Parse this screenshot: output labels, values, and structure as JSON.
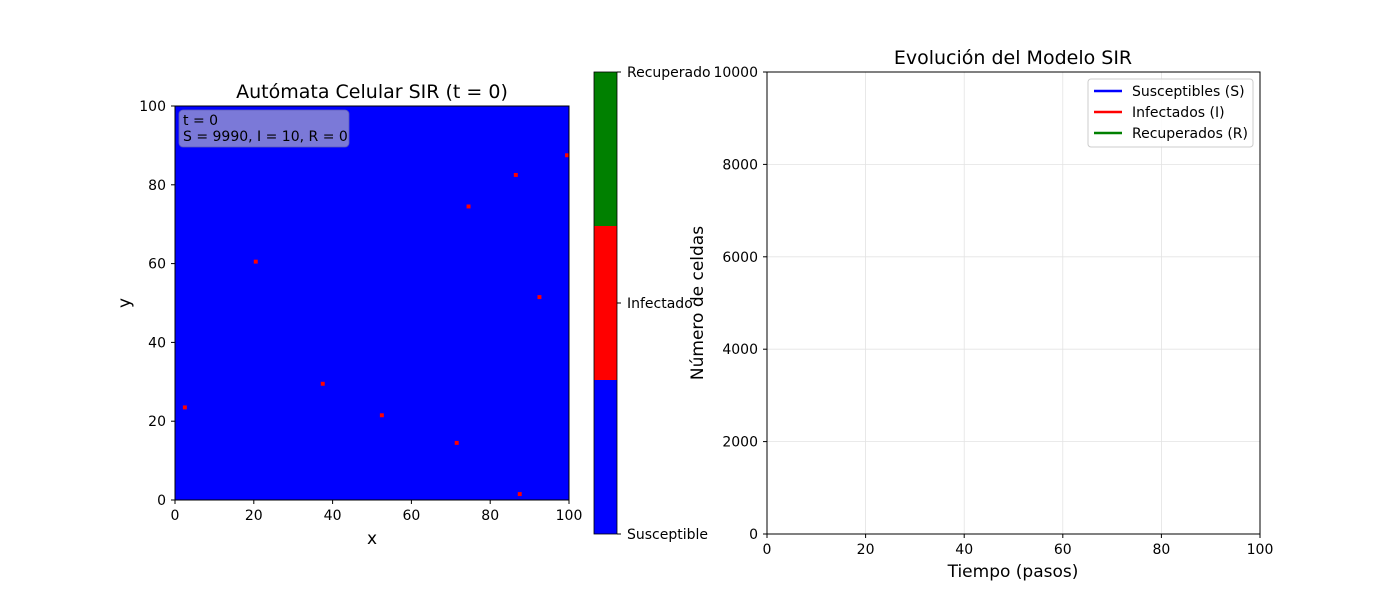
{
  "chart_data": [
    {
      "type": "heatmap",
      "title": "Autómata Celular SIR (t = 0)",
      "xlabel": "x",
      "ylabel": "y",
      "xlim": [
        0,
        100
      ],
      "ylim": [
        0,
        100
      ],
      "xticks": [
        "0",
        "20",
        "40",
        "60",
        "80",
        "100"
      ],
      "yticks": [
        "0",
        "20",
        "40",
        "60",
        "80",
        "100"
      ],
      "annotation": {
        "line1": "t = 0",
        "line2": "S = 9990, I = 10, R = 0"
      },
      "background_state": "Susceptible",
      "infected_cells": [
        {
          "x": 2,
          "y": 23
        },
        {
          "x": 20,
          "y": 60
        },
        {
          "x": 37,
          "y": 29
        },
        {
          "x": 52,
          "y": 21
        },
        {
          "x": 71,
          "y": 14
        },
        {
          "x": 74,
          "y": 74
        },
        {
          "x": 86,
          "y": 82
        },
        {
          "x": 87,
          "y": 1
        },
        {
          "x": 92,
          "y": 51
        },
        {
          "x": 99,
          "y": 87
        }
      ],
      "colorbar": {
        "labels": [
          "Susceptible",
          "Infectado",
          "Recuperado"
        ],
        "colors": [
          "#0000ff",
          "#ff0000",
          "#008000"
        ]
      },
      "grid": false
    },
    {
      "type": "line",
      "title": "Evolución del Modelo SIR",
      "xlabel": "Tiempo (pasos)",
      "ylabel": "Número de celdas",
      "xlim": [
        0,
        100
      ],
      "ylim": [
        0,
        10000
      ],
      "xticks": [
        "0",
        "20",
        "40",
        "60",
        "80",
        "100"
      ],
      "yticks": [
        "0",
        "2000",
        "4000",
        "6000",
        "8000",
        "10000"
      ],
      "series": [
        {
          "name": "Susceptibles (S)",
          "color": "#0000ff",
          "x": [],
          "y": []
        },
        {
          "name": "Infectados (I)",
          "color": "#ff0000",
          "x": [],
          "y": []
        },
        {
          "name": "Recuperados (R)",
          "color": "#008000",
          "x": [],
          "y": []
        }
      ],
      "legend_position": "top-right",
      "grid": true
    }
  ]
}
